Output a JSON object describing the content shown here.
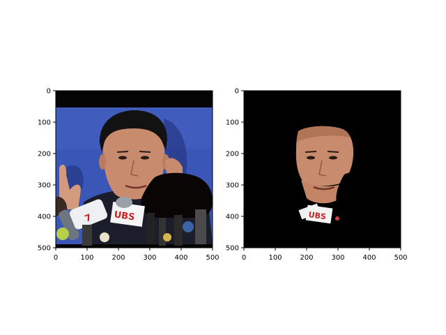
{
  "figure": {
    "background": "#ffffff",
    "panels": [
      {
        "id": "left",
        "image": "original photo with black occluder over shoulder area",
        "xlim": [
          0,
          500
        ],
        "ylim": [
          500,
          0
        ],
        "xticks": [
          "0",
          "100",
          "200",
          "300",
          "400",
          "500"
        ],
        "yticks": [
          "0",
          "100",
          "200",
          "300",
          "400",
          "500"
        ]
      },
      {
        "id": "right",
        "image": "face segmentation mask applied on black background",
        "xlim": [
          0,
          500
        ],
        "ylim": [
          500,
          0
        ],
        "xticks": [
          "0",
          "100",
          "200",
          "300",
          "400",
          "500"
        ],
        "yticks": [
          "0",
          "100",
          "200",
          "300",
          "400",
          "500"
        ]
      }
    ],
    "colors": {
      "backdrop_blue": "#3a57b8",
      "mask_black": "#000000",
      "skin": "#c98b6e"
    }
  }
}
